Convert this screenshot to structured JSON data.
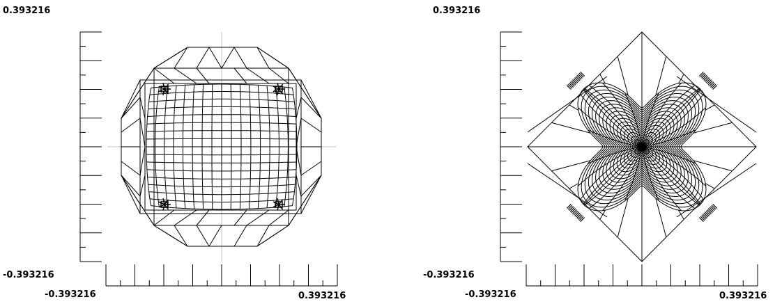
{
  "plots": [
    {
      "name": "left-mesh",
      "y_max_label": "0.393216",
      "y_min_label": "-0.393216",
      "x_min_label": "-0.393216",
      "x_max_label": "0.393216"
    },
    {
      "name": "right-mesh",
      "y_max_label": "0.393216",
      "y_min_label": "-0.393216",
      "x_min_label": "-0.393216",
      "x_max_label": "0.393216"
    }
  ],
  "colors": {
    "mesh": "#000000",
    "crosshair": "#c0c0c0",
    "axis": "#000000"
  }
}
